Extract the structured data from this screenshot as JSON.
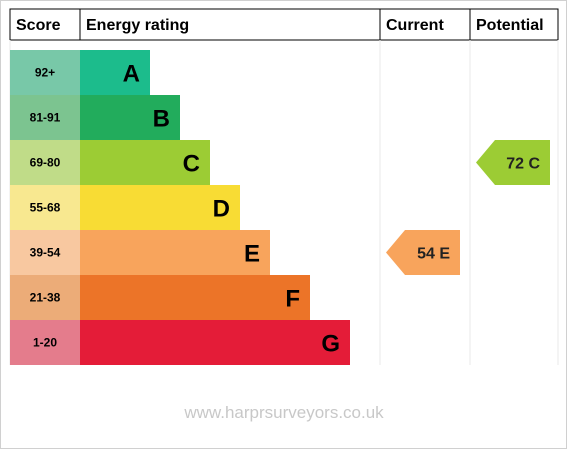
{
  "headers": {
    "score": "Score",
    "energy_rating": "Energy rating",
    "current": "Current",
    "potential": "Potential"
  },
  "chart_data": {
    "type": "bar",
    "categories": [
      "A",
      "B",
      "C",
      "D",
      "E",
      "F",
      "G"
    ],
    "score_ranges": [
      "92+",
      "81-91",
      "69-80",
      "55-68",
      "39-54",
      "21-38",
      "1-20"
    ],
    "values": [
      1,
      2,
      3,
      4,
      5,
      6,
      7
    ],
    "band_colors": [
      "#1cbc8c",
      "#22ac5c",
      "#9ccc34",
      "#f8dc34",
      "#f8a45c",
      "#ec7428",
      "#e41c38"
    ],
    "score_colors": [
      "#78c8a8",
      "#7cc490",
      "#c0dc88",
      "#f8e890",
      "#f8c8a0",
      "#ecac78",
      "#e47c8c"
    ],
    "current": {
      "value": 54,
      "band": "E",
      "label": "54 E",
      "color": "#f8a45c"
    },
    "potential": {
      "value": 72,
      "band": "C",
      "label": "72 C",
      "color": "#9ccc34"
    }
  },
  "footer": {
    "website": "www.harprsurveyors.co.uk"
  }
}
